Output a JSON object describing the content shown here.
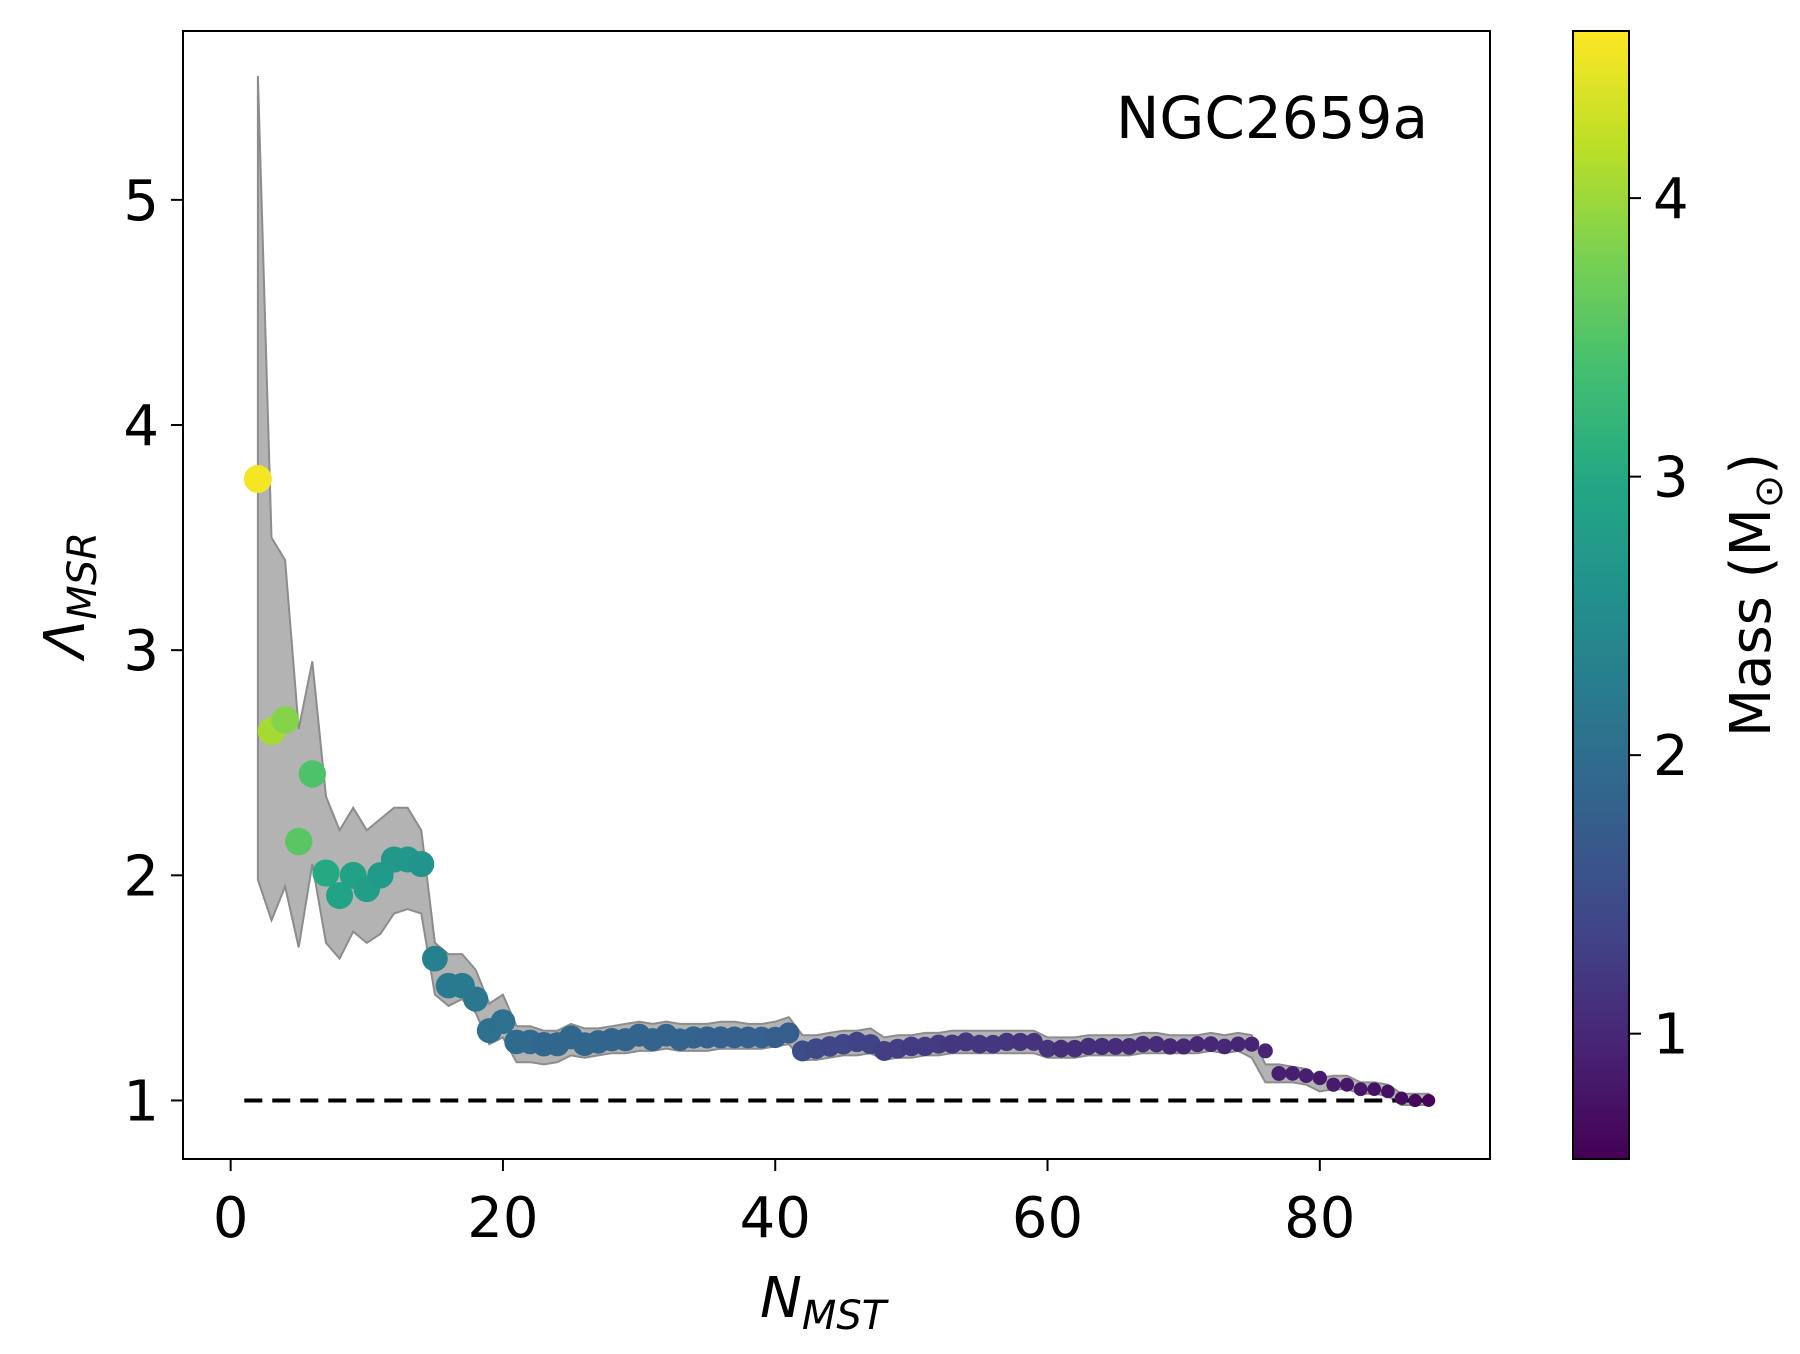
{
  "chart_data": {
    "type": "scatter",
    "annotation": "NGC2659a",
    "xlabel": {
      "main": "N",
      "sub": "MST"
    },
    "ylabel": {
      "main": "Λ",
      "sub": "MSR"
    },
    "xlim": [
      -3.5,
      92.5
    ],
    "ylim": [
      0.74,
      5.75
    ],
    "xticks": [
      0,
      20,
      40,
      60,
      80
    ],
    "yticks": [
      1,
      2,
      3,
      4,
      5
    ],
    "reference_line": {
      "y": 1,
      "x_start": 1,
      "x_end": 88,
      "style": "dashed"
    },
    "colorbar": {
      "label": "Mass (M",
      "label_symbol": "⊙",
      "label_end": ")",
      "range": [
        0.55,
        4.6
      ],
      "ticks": [
        1,
        2,
        3,
        4
      ],
      "colormap": "viridis"
    },
    "band": {
      "x": [
        2,
        3,
        4,
        5,
        6,
        7,
        8,
        9,
        10,
        11,
        12,
        13,
        14,
        15,
        16,
        17,
        18,
        19,
        20,
        21,
        22,
        23,
        24,
        25,
        26,
        27,
        28,
        29,
        30,
        31,
        32,
        33,
        34,
        35,
        36,
        37,
        38,
        39,
        40,
        41,
        42,
        43,
        44,
        45,
        46,
        47,
        48,
        49,
        50,
        51,
        52,
        53,
        54,
        55,
        56,
        57,
        58,
        59,
        60,
        61,
        62,
        63,
        64,
        65,
        66,
        67,
        68,
        69,
        70,
        71,
        72,
        73,
        74,
        75,
        76,
        77,
        78,
        79,
        80,
        81,
        82,
        83,
        84,
        85,
        86,
        87,
        88
      ],
      "upper": [
        5.55,
        3.5,
        3.4,
        2.65,
        2.95,
        2.35,
        2.2,
        2.3,
        2.2,
        2.25,
        2.3,
        2.3,
        2.2,
        1.7,
        1.65,
        1.65,
        1.58,
        1.43,
        1.47,
        1.33,
        1.33,
        1.31,
        1.31,
        1.34,
        1.32,
        1.32,
        1.33,
        1.34,
        1.35,
        1.34,
        1.35,
        1.34,
        1.34,
        1.34,
        1.35,
        1.35,
        1.34,
        1.34,
        1.35,
        1.37,
        1.29,
        1.29,
        1.3,
        1.31,
        1.31,
        1.32,
        1.28,
        1.29,
        1.29,
        1.3,
        1.3,
        1.31,
        1.31,
        1.31,
        1.31,
        1.31,
        1.31,
        1.31,
        1.28,
        1.28,
        1.28,
        1.29,
        1.29,
        1.29,
        1.29,
        1.3,
        1.3,
        1.29,
        1.29,
        1.29,
        1.3,
        1.29,
        1.3,
        1.29,
        1.16,
        1.16,
        1.15,
        1.14,
        1.1,
        1.11,
        1.11,
        1.08,
        1.08,
        1.07,
        1.03,
        1.03,
        1.03
      ],
      "lower": [
        1.98,
        1.8,
        1.95,
        1.68,
        2.05,
        1.7,
        1.63,
        1.75,
        1.7,
        1.74,
        1.83,
        1.85,
        1.83,
        1.47,
        1.42,
        1.45,
        1.39,
        1.25,
        1.28,
        1.17,
        1.17,
        1.16,
        1.17,
        1.2,
        1.19,
        1.2,
        1.21,
        1.21,
        1.22,
        1.22,
        1.23,
        1.22,
        1.22,
        1.22,
        1.23,
        1.23,
        1.23,
        1.23,
        1.24,
        1.25,
        1.18,
        1.18,
        1.19,
        1.2,
        1.2,
        1.21,
        1.18,
        1.19,
        1.19,
        1.2,
        1.2,
        1.21,
        1.21,
        1.21,
        1.21,
        1.21,
        1.21,
        1.21,
        1.19,
        1.19,
        1.19,
        1.2,
        1.2,
        1.2,
        1.2,
        1.21,
        1.21,
        1.21,
        1.21,
        1.21,
        1.22,
        1.21,
        1.22,
        1.19,
        1.08,
        1.08,
        1.08,
        1.07,
        1.04,
        1.05,
        1.05,
        1.03,
        1.03,
        1.02,
        0.98,
        0.98,
        0.98
      ]
    },
    "points": {
      "x": [
        2,
        3,
        4,
        5,
        6,
        7,
        8,
        9,
        10,
        11,
        12,
        13,
        14,
        15,
        16,
        17,
        18,
        19,
        20,
        21,
        22,
        23,
        24,
        25,
        26,
        27,
        28,
        29,
        30,
        31,
        32,
        33,
        34,
        35,
        36,
        37,
        38,
        39,
        40,
        41,
        42,
        43,
        44,
        45,
        46,
        47,
        48,
        49,
        50,
        51,
        52,
        53,
        54,
        55,
        56,
        57,
        58,
        59,
        60,
        61,
        62,
        63,
        64,
        65,
        66,
        67,
        68,
        69,
        70,
        71,
        72,
        73,
        74,
        75,
        76,
        77,
        78,
        79,
        80,
        81,
        82,
        83,
        84,
        85,
        86,
        87,
        88
      ],
      "y": [
        3.76,
        2.64,
        2.69,
        2.15,
        2.45,
        2.01,
        1.91,
        2.0,
        1.94,
        2.0,
        2.07,
        2.07,
        2.05,
        1.63,
        1.51,
        1.51,
        1.45,
        1.31,
        1.35,
        1.26,
        1.26,
        1.25,
        1.25,
        1.28,
        1.25,
        1.26,
        1.27,
        1.27,
        1.29,
        1.27,
        1.29,
        1.27,
        1.28,
        1.28,
        1.28,
        1.28,
        1.28,
        1.28,
        1.28,
        1.3,
        1.22,
        1.23,
        1.24,
        1.25,
        1.26,
        1.25,
        1.22,
        1.23,
        1.24,
        1.24,
        1.25,
        1.25,
        1.26,
        1.25,
        1.25,
        1.26,
        1.26,
        1.26,
        1.23,
        1.23,
        1.23,
        1.24,
        1.24,
        1.24,
        1.24,
        1.25,
        1.25,
        1.24,
        1.24,
        1.25,
        1.25,
        1.24,
        1.25,
        1.25,
        1.22,
        1.12,
        1.12,
        1.11,
        1.1,
        1.07,
        1.07,
        1.05,
        1.05,
        1.04,
        1.01,
        1.0,
        1.0
      ],
      "mass": [
        4.55,
        4.05,
        3.85,
        3.55,
        3.45,
        3.0,
        2.9,
        2.85,
        2.8,
        2.75,
        2.7,
        2.7,
        2.65,
        2.3,
        2.2,
        2.2,
        2.15,
        2.05,
        2.05,
        1.95,
        1.95,
        1.9,
        1.9,
        1.9,
        1.9,
        1.9,
        1.85,
        1.85,
        1.85,
        1.85,
        1.85,
        1.85,
        1.85,
        1.8,
        1.8,
        1.8,
        1.8,
        1.8,
        1.75,
        1.75,
        1.5,
        1.45,
        1.4,
        1.4,
        1.35,
        1.35,
        1.3,
        1.3,
        1.25,
        1.25,
        1.25,
        1.2,
        1.2,
        1.2,
        1.2,
        1.2,
        1.15,
        1.15,
        1.15,
        1.1,
        1.1,
        1.1,
        1.1,
        1.05,
        1.05,
        1.05,
        1.05,
        1.0,
        1.0,
        1.0,
        1.0,
        1.0,
        0.95,
        0.95,
        0.95,
        0.9,
        0.9,
        0.9,
        0.85,
        0.85,
        0.8,
        0.8,
        0.75,
        0.75,
        0.7,
        0.65,
        0.6
      ]
    }
  }
}
